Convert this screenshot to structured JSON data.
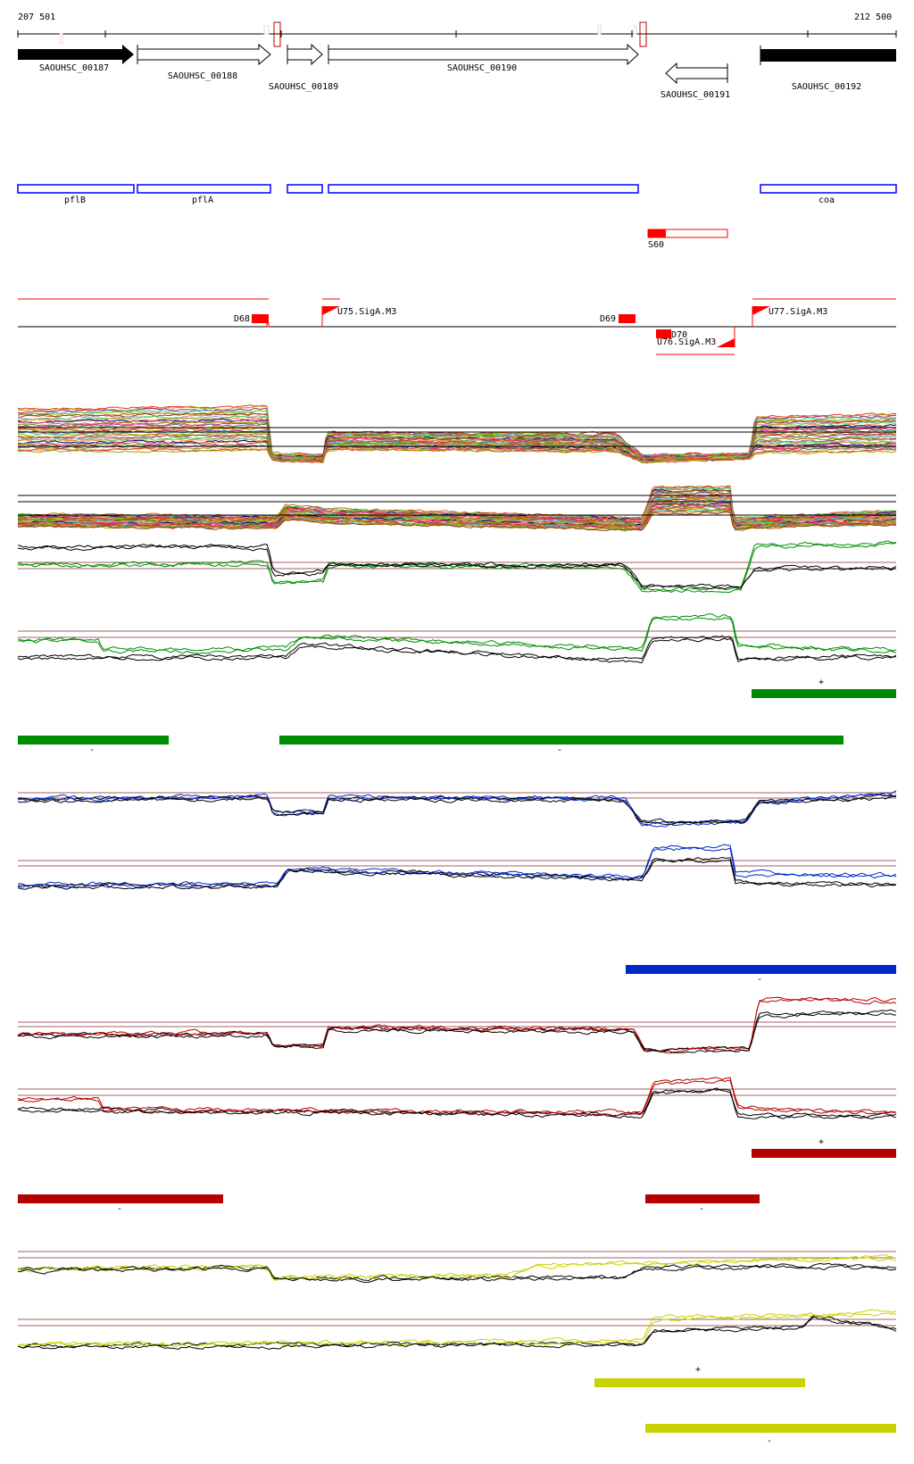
{
  "ruler": {
    "start": "207 501",
    "end": "212 500"
  },
  "genes": [
    {
      "label": "SAOUHSC_00187",
      "strand": "+",
      "filled": true
    },
    {
      "label": "SAOUHSC_00188",
      "strand": "+",
      "filled": false
    },
    {
      "label": "SAOUHSC_00189",
      "strand": "+",
      "filled": false
    },
    {
      "label": "SAOUHSC_00190",
      "strand": "+",
      "filled": false
    },
    {
      "label": "SAOUHSC_00191",
      "strand": "-",
      "filled": false
    },
    {
      "label": "SAOUHSC_00192",
      "strand": "+",
      "filled": true
    }
  ],
  "gene_names": [
    "pflB",
    "pflA",
    "",
    "",
    "coa"
  ],
  "srna": {
    "label": "S60"
  },
  "features": {
    "d68": "D68",
    "u75": "U75.SigA.M3",
    "d69": "D69",
    "d70": "D70",
    "u76": "U76.SigA.M3",
    "u77": "U77.SigA.M3"
  },
  "segments": {
    "green": {
      "color": "#008c00",
      "plus": "+",
      "minus": "-"
    },
    "blue": {
      "color": "#0028c8",
      "minus": "-"
    },
    "red": {
      "color": "#b40000",
      "plus": "+",
      "minus": "-"
    },
    "yellow": {
      "color": "#c8d200",
      "plus": "+",
      "minus": "-"
    }
  }
}
